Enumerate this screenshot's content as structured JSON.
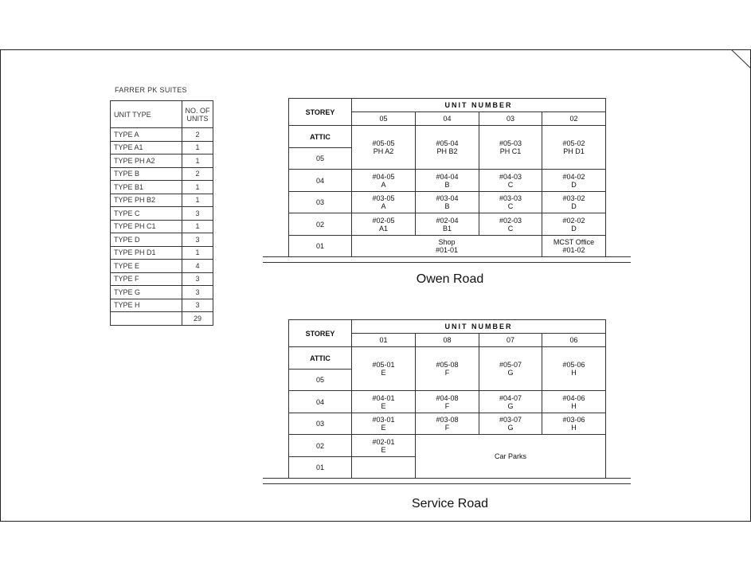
{
  "summary": {
    "title": "FARRER PK SUITES",
    "headers": [
      "UNIT TYPE",
      "NO. OF UNITS"
    ],
    "rows": [
      [
        "TYPE  A",
        "2"
      ],
      [
        "TYPE  A1",
        "1"
      ],
      [
        "TYPE  PH  A2",
        "1"
      ],
      [
        "TYPE  B",
        "2"
      ],
      [
        "TYPE  B1",
        "1"
      ],
      [
        "TYPE  PH  B2",
        "1"
      ],
      [
        "TYPE  C",
        "3"
      ],
      [
        "TYPE  PH  C1",
        "1"
      ],
      [
        "TYPE  D",
        "3"
      ],
      [
        "TYPE  PH  D1",
        "1"
      ],
      [
        "TYPE  E",
        "4"
      ],
      [
        "TYPE  F",
        "3"
      ],
      [
        "TYPE  G",
        "3"
      ],
      [
        "TYPE  H",
        "3"
      ]
    ],
    "total": "29"
  },
  "owen": {
    "storey_label": "STOREY",
    "unit_label": "UNIT NUMBER",
    "cols": [
      "05",
      "04",
      "03",
      "02"
    ],
    "storeys": [
      "ATTIC",
      "05",
      "04",
      "03",
      "02",
      "01"
    ],
    "top": [
      [
        "#05-05",
        "PH A2"
      ],
      [
        "#05-04",
        "PH B2"
      ],
      [
        "#05-03",
        "PH C1"
      ],
      [
        "#05-02",
        "PH D1"
      ]
    ],
    "r04": [
      [
        "#04-05",
        "A"
      ],
      [
        "#04-04",
        "B"
      ],
      [
        "#04-03",
        "C"
      ],
      [
        "#04-02",
        "D"
      ]
    ],
    "r03": [
      [
        "#03-05",
        "A"
      ],
      [
        "#03-04",
        "B"
      ],
      [
        "#03-03",
        "C"
      ],
      [
        "#03-02",
        "D"
      ]
    ],
    "r02": [
      [
        "#02-05",
        "A1"
      ],
      [
        "#02-04",
        "B1"
      ],
      [
        "#02-03",
        "C"
      ],
      [
        "#02-02",
        "D"
      ]
    ],
    "shop": [
      "Shop",
      "#01-01"
    ],
    "office": [
      "MCST Office",
      "#01-02"
    ],
    "road": "Owen Road"
  },
  "service": {
    "storey_label": "STOREY",
    "unit_label": "UNIT NUMBER",
    "cols": [
      "01",
      "08",
      "07",
      "06"
    ],
    "storeys": [
      "ATTIC",
      "05",
      "04",
      "03",
      "02",
      "01"
    ],
    "top": [
      [
        "#05-01",
        "E"
      ],
      [
        "#05-08",
        "F"
      ],
      [
        "#05-07",
        "G"
      ],
      [
        "#05-06",
        "H"
      ]
    ],
    "r04": [
      [
        "#04-01",
        "E"
      ],
      [
        "#04-08",
        "F"
      ],
      [
        "#04-07",
        "G"
      ],
      [
        "#04-06",
        "H"
      ]
    ],
    "r03": [
      [
        "#03-01",
        "E"
      ],
      [
        "#03-08",
        "F"
      ],
      [
        "#03-07",
        "G"
      ],
      [
        "#03-06",
        "H"
      ]
    ],
    "r02": [
      "#02-01",
      "E"
    ],
    "carparks": "Car Parks",
    "road": "Service Road"
  }
}
